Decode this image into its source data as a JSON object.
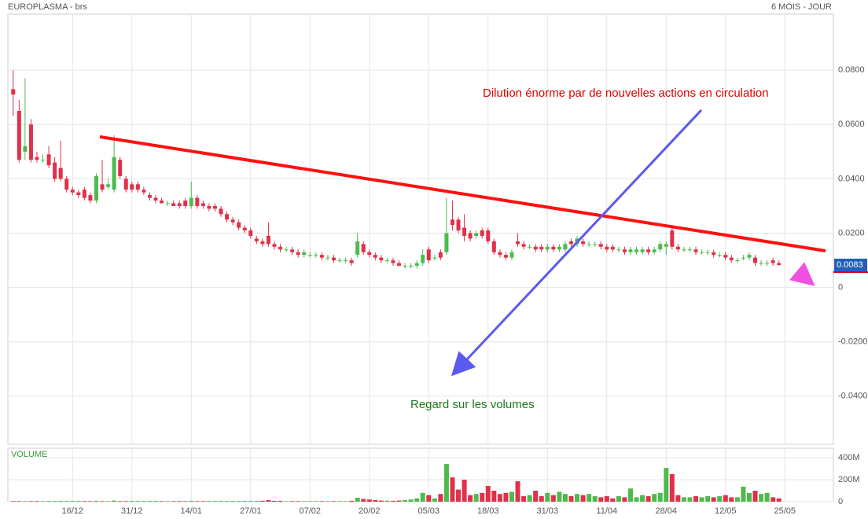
{
  "chart_data": {
    "type": "candlestick",
    "title": "EUROPLASMA - brs",
    "subtitle": "6 MOIS - JOUR",
    "up_color": "#4cbb4c",
    "down_color": "#e0304a",
    "grid": true,
    "categories": [
      null,
      null,
      null,
      null,
      null,
      null,
      null,
      null,
      null,
      null,
      "16/12",
      null,
      null,
      null,
      null,
      null,
      null,
      null,
      null,
      null,
      "31/12",
      null,
      null,
      null,
      null,
      null,
      null,
      null,
      null,
      null,
      "14/01",
      null,
      null,
      null,
      null,
      null,
      null,
      null,
      null,
      null,
      "27/01",
      null,
      null,
      null,
      null,
      null,
      null,
      null,
      null,
      null,
      "07/02",
      null,
      null,
      null,
      null,
      null,
      null,
      null,
      null,
      null,
      "20/02",
      null,
      null,
      null,
      null,
      null,
      null,
      null,
      null,
      null,
      "05/03",
      null,
      null,
      null,
      null,
      null,
      null,
      null,
      null,
      null,
      "18/03",
      null,
      null,
      null,
      null,
      null,
      null,
      null,
      null,
      null,
      "31/03",
      null,
      null,
      null,
      null,
      null,
      null,
      null,
      null,
      null,
      "11/04",
      null,
      null,
      null,
      null,
      null,
      null,
      null,
      null,
      null,
      "28/04",
      null,
      null,
      null,
      null,
      null,
      null,
      null,
      null,
      null,
      "12/05",
      null,
      null,
      null,
      null,
      null,
      null,
      null,
      null,
      null,
      "25/05"
    ],
    "open": [
      0.073,
      0.065,
      0.05,
      0.06,
      0.048,
      0.047,
      0.049,
      0.046,
      0.044,
      0.04,
      0.036,
      0.035,
      0.036,
      0.034,
      0.032,
      0.038,
      0.037,
      0.036,
      0.047,
      0.04,
      0.038,
      0.038,
      0.036,
      0.034,
      0.033,
      0.032,
      0.031,
      0.031,
      0.031,
      0.032,
      0.03,
      0.033,
      0.031,
      0.03,
      0.03,
      0.029,
      0.027,
      0.025,
      0.024,
      0.022,
      0.021,
      0.018,
      0.017,
      0.019,
      0.016,
      0.015,
      0.014,
      0.014,
      0.013,
      0.012,
      0.012,
      0.012,
      0.012,
      0.011,
      0.011,
      0.01,
      0.01,
      0.01,
      0.012,
      0.016,
      0.013,
      0.012,
      0.011,
      0.01,
      0.01,
      0.009,
      0.008,
      0.008,
      0.008,
      0.009,
      0.014,
      0.011,
      0.013,
      0.013,
      0.025,
      0.025,
      0.022,
      0.02,
      0.019,
      0.021,
      0.021,
      0.017,
      0.013,
      0.012,
      0.011,
      0.017,
      0.016,
      0.015,
      0.015,
      0.015,
      0.014,
      0.015,
      0.014,
      0.014,
      0.017,
      0.016,
      0.017,
      0.016,
      0.016,
      0.016,
      0.015,
      0.015,
      0.014,
      0.014,
      0.013,
      0.013,
      0.013,
      0.014,
      0.013,
      0.014,
      0.015,
      0.021,
      0.015,
      0.014,
      0.014,
      0.014,
      0.013,
      0.013,
      0.013,
      0.012,
      0.012,
      0.011,
      0.01,
      0.011,
      0.011,
      0.011,
      0.009,
      0.009,
      0.01,
      0.009,
      null
    ],
    "high": [
      0.08,
      0.069,
      0.077,
      0.062,
      0.05,
      0.049,
      0.052,
      0.048,
      0.054,
      0.041,
      0.037,
      0.036,
      0.037,
      0.035,
      0.042,
      0.047,
      0.04,
      0.056,
      0.048,
      0.041,
      0.039,
      0.039,
      0.037,
      0.035,
      0.034,
      0.033,
      0.032,
      0.032,
      0.032,
      0.033,
      0.039,
      0.034,
      0.032,
      0.031,
      0.031,
      0.03,
      0.028,
      0.026,
      0.025,
      0.023,
      0.022,
      0.019,
      0.018,
      0.024,
      0.017,
      0.016,
      0.015,
      0.015,
      0.014,
      0.014,
      0.013,
      0.013,
      0.013,
      0.012,
      0.012,
      0.011,
      0.011,
      0.011,
      0.02,
      0.017,
      0.014,
      0.013,
      0.012,
      0.011,
      0.011,
      0.01,
      0.009,
      0.009,
      0.01,
      0.014,
      0.015,
      0.012,
      0.014,
      0.033,
      0.032,
      0.026,
      0.027,
      0.021,
      0.021,
      0.022,
      0.022,
      0.018,
      0.014,
      0.013,
      0.014,
      0.02,
      0.017,
      0.016,
      0.016,
      0.016,
      0.016,
      0.016,
      0.016,
      0.017,
      0.018,
      0.019,
      0.018,
      0.017,
      0.017,
      0.017,
      0.016,
      0.016,
      0.015,
      0.015,
      0.015,
      0.015,
      0.015,
      0.015,
      0.015,
      0.017,
      0.017,
      0.023,
      0.016,
      0.015,
      0.015,
      0.015,
      0.014,
      0.014,
      0.014,
      0.013,
      0.013,
      0.012,
      0.011,
      0.012,
      0.013,
      0.012,
      0.01,
      0.01,
      0.011,
      0.01,
      null
    ],
    "low": [
      0.063,
      0.046,
      0.047,
      0.046,
      0.046,
      0.046,
      0.044,
      0.039,
      0.039,
      0.035,
      0.034,
      0.033,
      0.032,
      0.031,
      0.031,
      0.035,
      0.036,
      0.035,
      0.04,
      0.035,
      0.035,
      0.035,
      0.034,
      0.032,
      0.031,
      0.031,
      0.03,
      0.03,
      0.029,
      0.029,
      0.029,
      0.029,
      0.029,
      0.028,
      0.028,
      0.026,
      0.024,
      0.023,
      0.021,
      0.02,
      0.018,
      0.016,
      0.015,
      0.015,
      0.014,
      0.013,
      0.013,
      0.012,
      0.011,
      0.011,
      0.011,
      0.011,
      0.01,
      0.01,
      0.009,
      0.009,
      0.009,
      0.008,
      0.011,
      0.012,
      0.011,
      0.01,
      0.009,
      0.009,
      0.008,
      0.008,
      0.007,
      0.007,
      0.007,
      0.008,
      0.009,
      0.01,
      0.01,
      0.012,
      0.021,
      0.02,
      0.017,
      0.017,
      0.018,
      0.018,
      0.016,
      0.012,
      0.011,
      0.01,
      0.01,
      0.015,
      0.014,
      0.014,
      0.013,
      0.013,
      0.013,
      0.013,
      0.013,
      0.013,
      0.015,
      0.015,
      0.015,
      0.015,
      0.015,
      0.014,
      0.013,
      0.013,
      0.013,
      0.012,
      0.012,
      0.012,
      0.012,
      0.012,
      0.012,
      0.013,
      0.012,
      0.014,
      0.013,
      0.013,
      0.013,
      0.012,
      0.012,
      0.012,
      0.011,
      0.011,
      0.01,
      0.009,
      0.009,
      0.01,
      0.01,
      0.008,
      0.008,
      0.008,
      0.008,
      0.008,
      null
    ],
    "close": [
      0.071,
      0.047,
      0.052,
      0.047,
      0.047,
      0.047,
      0.045,
      0.04,
      0.04,
      0.036,
      0.035,
      0.034,
      0.033,
      0.032,
      0.041,
      0.036,
      0.038,
      0.048,
      0.041,
      0.036,
      0.036,
      0.036,
      0.035,
      0.033,
      0.032,
      0.031,
      0.031,
      0.03,
      0.03,
      0.03,
      0.033,
      0.03,
      0.03,
      0.029,
      0.029,
      0.027,
      0.025,
      0.024,
      0.022,
      0.021,
      0.019,
      0.017,
      0.016,
      0.016,
      0.015,
      0.014,
      0.014,
      0.013,
      0.012,
      0.013,
      0.012,
      0.012,
      0.011,
      0.011,
      0.01,
      0.01,
      0.01,
      0.009,
      0.017,
      0.013,
      0.012,
      0.011,
      0.01,
      0.01,
      0.009,
      0.008,
      0.008,
      0.008,
      0.009,
      0.012,
      0.01,
      0.011,
      0.011,
      0.02,
      0.023,
      0.021,
      0.019,
      0.018,
      0.02,
      0.019,
      0.017,
      0.013,
      0.012,
      0.011,
      0.013,
      0.016,
      0.015,
      0.015,
      0.014,
      0.014,
      0.015,
      0.014,
      0.015,
      0.016,
      0.016,
      0.018,
      0.016,
      0.016,
      0.016,
      0.015,
      0.014,
      0.014,
      0.014,
      0.013,
      0.014,
      0.014,
      0.014,
      0.013,
      0.014,
      0.016,
      0.016,
      0.015,
      0.014,
      0.014,
      0.014,
      0.013,
      0.013,
      0.013,
      0.012,
      0.012,
      0.011,
      0.01,
      0.01,
      0.011,
      0.012,
      0.009,
      0.009,
      0.009,
      0.009,
      0.0083,
      null
    ],
    "ylim": [
      -0.0577,
      0.1006
    ],
    "yticks": [
      {
        "value": -0.04,
        "label": "-0.0400"
      },
      {
        "value": -0.02,
        "label": "-0.0200"
      },
      0,
      {
        "value": 0.02,
        "label": "0.0200"
      },
      {
        "value": 0.04,
        "label": "0.0400"
      },
      {
        "value": 0.06,
        "label": "0.0600"
      },
      {
        "value": 0.08,
        "label": "0.0800"
      }
    ],
    "last_value": 0.0083,
    "annotations": [
      {
        "text": "Dilution énorme par de nouvelles actions en circulation",
        "color": "#e00000"
      },
      {
        "text": "Regard sur les volumes",
        "color": "#1a7a1a"
      }
    ],
    "volume": {
      "title": "VOLUME",
      "ylim": [
        0,
        486000000.0
      ],
      "yticks": [
        0,
        {
          "value": 200000000.0,
          "label": "200M"
        },
        {
          "value": 400000000.0,
          "label": "400M"
        }
      ],
      "values": [
        5000000.0,
        5000000.0,
        5000000.0,
        5000000.0,
        5000000.0,
        5000000.0,
        5000000.0,
        5000000.0,
        5000000.0,
        5000000.0,
        5000000.0,
        5000000.0,
        5000000.0,
        5000000.0,
        8000000.0,
        5000000.0,
        5000000.0,
        10000000.0,
        5000000.0,
        5000000.0,
        5000000.0,
        5000000.0,
        5000000.0,
        5000000.0,
        5000000.0,
        5000000.0,
        5000000.0,
        5000000.0,
        5000000.0,
        5000000.0,
        8000000.0,
        5000000.0,
        5000000.0,
        5000000.0,
        5000000.0,
        5000000.0,
        5000000.0,
        5000000.0,
        5000000.0,
        5000000.0,
        5000000.0,
        5000000.0,
        8000000.0,
        15000000.0,
        8000000.0,
        8000000.0,
        5000000.0,
        5000000.0,
        5000000.0,
        5000000.0,
        5000000.0,
        5000000.0,
        5000000.0,
        5000000.0,
        5000000.0,
        5000000.0,
        5000000.0,
        8000000.0,
        36000000.0,
        25000000.0,
        20000000.0,
        15000000.0,
        10000000.0,
        10000000.0,
        8000000.0,
        10000000.0,
        15000000.0,
        20000000.0,
        30000000.0,
        80000000.0,
        60000000.0,
        30000000.0,
        70000000.0,
        343000000.0,
        221000000.0,
        110000000.0,
        200000000.0,
        60000000.0,
        70000000.0,
        80000000.0,
        143000000.0,
        100000000.0,
        70000000.0,
        80000000.0,
        90000000.0,
        186000000.0,
        50000000.0,
        60000000.0,
        100000000.0,
        50000000.0,
        80000000.0,
        60000000.0,
        90000000.0,
        70000000.0,
        50000000.0,
        70000000.0,
        60000000.0,
        70000000.0,
        50000000.0,
        40000000.0,
        50000000.0,
        30000000.0,
        50000000.0,
        40000000.0,
        120000000.0,
        40000000.0,
        60000000.0,
        50000000.0,
        70000000.0,
        80000000.0,
        307000000.0,
        250000000.0,
        60000000.0,
        40000000.0,
        40000000.0,
        50000000.0,
        40000000.0,
        50000000.0,
        40000000.0,
        50000000.0,
        60000000.0,
        40000000.0,
        40000000.0,
        136000000.0,
        80000000.0,
        100000000.0,
        70000000.0,
        80000000.0,
        40000000.0,
        30000000.0,
        null
      ]
    }
  }
}
